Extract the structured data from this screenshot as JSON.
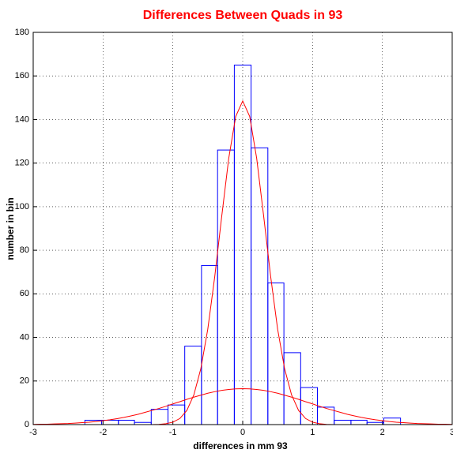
{
  "chart_data": {
    "type": "histogram",
    "title": "Differences Between Quads in 93",
    "x_label": "differences in mm 93",
    "y_label": "number in bin",
    "bins": [
      -2.26,
      -2.02,
      -1.78,
      -1.55,
      -1.31,
      -1.07,
      -0.83,
      -0.59,
      -0.36,
      -0.12,
      0.12,
      0.36,
      0.59,
      0.83,
      1.07,
      1.31,
      1.55,
      1.78,
      2.02,
      2.26
    ],
    "values": [
      2,
      2,
      2,
      1,
      7,
      9,
      36,
      73,
      126,
      165,
      127,
      65,
      33,
      17,
      8,
      2,
      2,
      1,
      3
    ],
    "color": "#0000ff",
    "lines": {
      "type": "line",
      "x": [
        -3,
        -2.9,
        -2.8,
        -2.7,
        -2.6,
        -2.5,
        -2.4,
        -2.3,
        -2.2,
        -2.1,
        -2,
        -1.9,
        -1.8,
        -1.7,
        -1.6,
        -1.5,
        -1.4,
        -1.3,
        -1.2,
        -1.1,
        -1,
        -0.9,
        -0.8,
        -0.7,
        -0.6,
        -0.5,
        -0.4,
        -0.3,
        -0.2,
        -0.1,
        0,
        0.1,
        0.2,
        0.3,
        0.4,
        0.5,
        0.6,
        0.7,
        0.8,
        0.9,
        1,
        1.1,
        1.2,
        1.3,
        1.4,
        1.5,
        1.6,
        1.7,
        1.8,
        1.9,
        2,
        2.1,
        2.2,
        2.3,
        2.4,
        2.5,
        2.6,
        2.7,
        2.8,
        2.9,
        3
      ],
      "series": [
        {
          "color": "#ff0000",
          "values": [
            0,
            0,
            0,
            0,
            0,
            0,
            0,
            0,
            0,
            0,
            0,
            0,
            0,
            0,
            0,
            0,
            0,
            0,
            0.1,
            0.4,
            1.1,
            2.8,
            6.5,
            13.6,
            25.6,
            43.8,
            68,
            95.7,
            122.2,
            141.4,
            148.5,
            141.4,
            122.2,
            95.7,
            68,
            43.8,
            25.6,
            13.6,
            6.5,
            2.8,
            1.1,
            0.4,
            0.1,
            0,
            0,
            0,
            0,
            0,
            0,
            0,
            0,
            0,
            0,
            0,
            0,
            0,
            0,
            0,
            0,
            0,
            0
          ]
        },
        {
          "color": "#ff0000",
          "values": [
            0.1,
            0.2,
            0.2,
            0.3,
            0.4,
            0.5,
            0.7,
            0.9,
            1.1,
            1.4,
            1.8,
            2.2,
            2.7,
            3.3,
            4.0,
            4.7,
            5.6,
            6.5,
            7.4,
            8.4,
            9.5,
            10.5,
            11.6,
            12.6,
            13.5,
            14.4,
            15.1,
            15.7,
            16.1,
            16.4,
            16.5,
            16.4,
            16.1,
            15.7,
            15.1,
            14.4,
            13.5,
            12.6,
            11.6,
            10.5,
            9.5,
            8.4,
            7.4,
            6.5,
            5.6,
            4.7,
            4.0,
            3.3,
            2.7,
            2.2,
            1.8,
            1.4,
            1.1,
            0.9,
            0.7,
            0.5,
            0.4,
            0.3,
            0.2,
            0.2,
            0.1
          ]
        }
      ]
    },
    "xlim": [
      -3,
      3
    ],
    "xticks": [
      -3,
      -2,
      -1,
      0,
      1,
      2,
      3
    ],
    "ylim": [
      0,
      180
    ],
    "yticks": [
      0,
      20,
      40,
      60,
      80,
      100,
      120,
      140,
      160,
      180
    ],
    "grid": true
  }
}
